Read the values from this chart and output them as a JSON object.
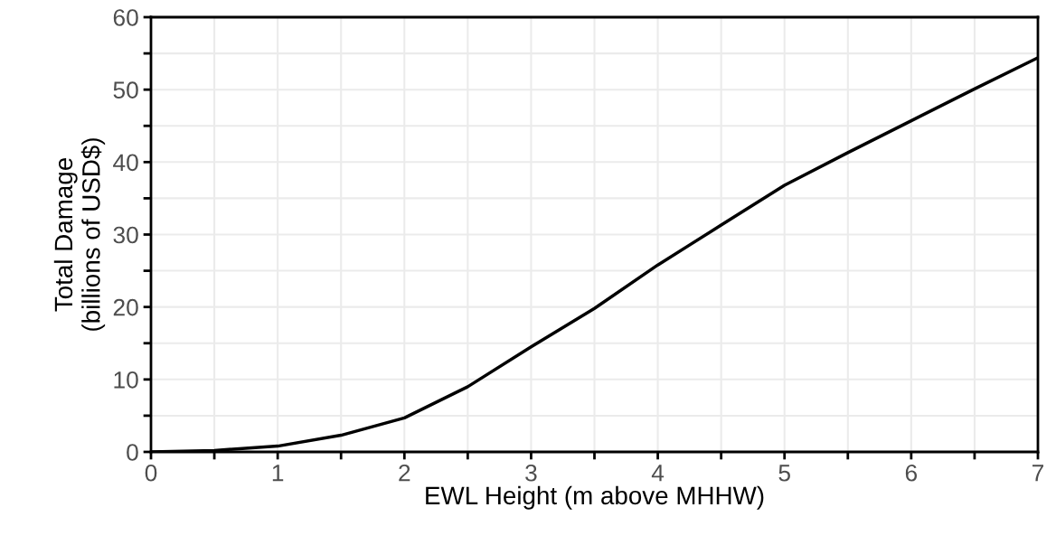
{
  "chart_data": {
    "type": "line",
    "xlabel": "EWL Height (m above MHHW)",
    "ylabel": "Total Damage\n(billions of USD$)",
    "x": [
      0,
      0.5,
      1,
      1.5,
      2,
      2.5,
      3,
      3.5,
      4,
      4.5,
      5,
      5.5,
      6,
      6.5,
      7
    ],
    "series": [
      {
        "color": "#000000",
        "values": [
          0,
          0.2,
          0.8,
          2.3,
          4.7,
          9.0,
          14.5,
          19.8,
          25.8,
          31.3,
          36.8,
          41.3,
          45.7,
          50.1,
          54.4
        ]
      }
    ],
    "xlim": [
      0,
      7
    ],
    "ylim": [
      0,
      60
    ],
    "xticks": [
      0,
      {
        "value": 0.5,
        "label": null
      },
      1,
      {
        "value": 1.5,
        "label": null
      },
      2,
      {
        "value": 2.5,
        "label": null
      },
      3,
      {
        "value": 3.5,
        "label": null
      },
      4,
      {
        "value": 4.5,
        "label": null
      },
      5,
      {
        "value": 5.5,
        "label": null
      },
      6,
      {
        "value": 6.5,
        "label": null
      },
      7
    ],
    "yticks": [
      0,
      {
        "value": 5,
        "label": null
      },
      10,
      {
        "value": 15,
        "label": null
      },
      20,
      {
        "value": 25,
        "label": null
      },
      30,
      {
        "value": 35,
        "label": null
      },
      40,
      {
        "value": 45,
        "label": null
      },
      50,
      {
        "value": 55,
        "label": null
      },
      60
    ],
    "grid": true,
    "marker": "none",
    "line_style": "solid"
  }
}
